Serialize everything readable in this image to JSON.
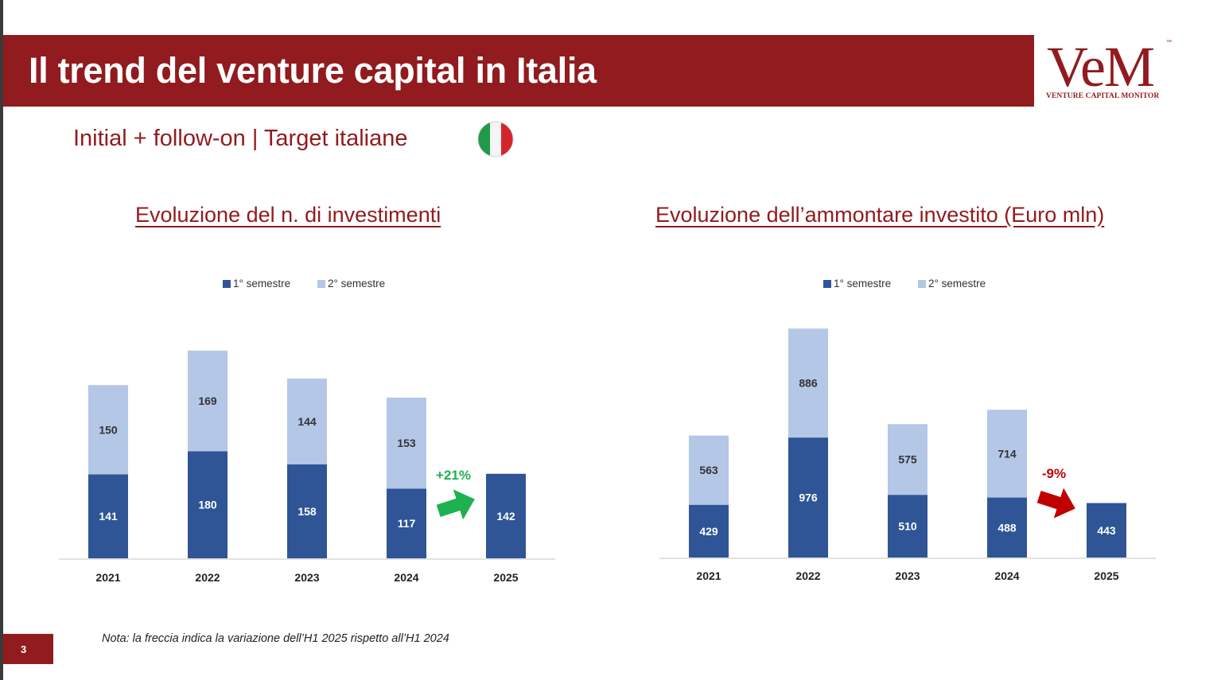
{
  "header": {
    "title": "Il trend del venture capital in Italia"
  },
  "logo": {
    "mark": "VeM",
    "tagline": "VENTURE CAPITAL MONITOR",
    "tm": "™"
  },
  "subtitle": "Initial + follow-on | Target italiane",
  "colors": {
    "brand_red": "#911b1e",
    "first_half": "#2f5597",
    "second_half": "#b4c7e7",
    "up_arrow": "#1eb150",
    "down_arrow": "#c00000"
  },
  "chart_data": [
    {
      "type": "bar",
      "stacked": true,
      "title": "Evoluzione del n. di investimenti",
      "categories": [
        "2021",
        "2022",
        "2023",
        "2024",
        "2025"
      ],
      "series": [
        {
          "name": "1° semestre",
          "values": [
            141,
            180,
            158,
            117,
            142
          ]
        },
        {
          "name": "2° semestre",
          "values": [
            150,
            169,
            144,
            153,
            null
          ]
        }
      ],
      "legend_position": "top",
      "grid": false,
      "annotation": {
        "label": "+21%",
        "direction": "up",
        "from": "2024",
        "to": "2025"
      }
    },
    {
      "type": "bar",
      "stacked": true,
      "title": "Evoluzione dell’ammontare investito (Euro mln)",
      "categories": [
        "2021",
        "2022",
        "2023",
        "2024",
        "2025"
      ],
      "series": [
        {
          "name": "1° semestre",
          "values": [
            429,
            976,
            510,
            488,
            443
          ]
        },
        {
          "name": "2° semestre",
          "values": [
            563,
            886,
            575,
            714,
            null
          ]
        }
      ],
      "legend_position": "top",
      "grid": false,
      "annotation": {
        "label": "-9%",
        "direction": "down",
        "from": "2024",
        "to": "2025"
      }
    }
  ],
  "footer": {
    "page_number": "3",
    "note": "Nota: la freccia indica la variazione dell’H1 2025 rispetto all’H1 2024"
  }
}
